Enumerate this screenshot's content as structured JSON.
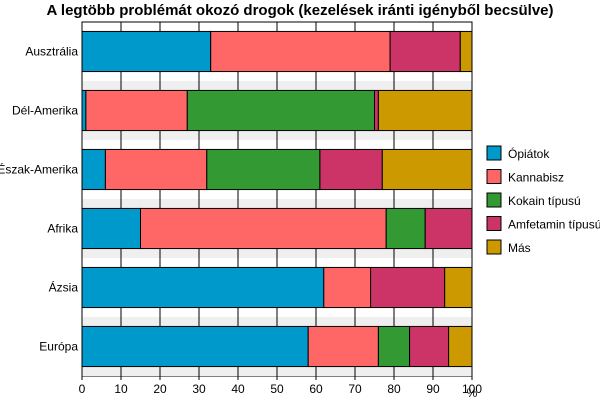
{
  "chart_data": {
    "type": "bar",
    "orientation": "horizontal",
    "stacked": true,
    "title": "A legtöbb problémát okozó drogok (kezelések iránti igényből becsülve)",
    "categories": [
      "Ausztrália",
      "Dél-Amerika",
      "Észak-Amerika",
      "Afrika",
      "Ázsia",
      "Európa"
    ],
    "series": [
      {
        "name": "Ópiátok",
        "color": "#0099cc",
        "values": [
          33,
          1,
          6,
          15,
          62,
          58
        ]
      },
      {
        "name": "Kannabisz",
        "color": "#ff6666",
        "values": [
          46,
          26,
          26,
          63,
          12,
          18
        ]
      },
      {
        "name": "Kokain típusú",
        "color": "#339933",
        "values": [
          0,
          48,
          29,
          10,
          0,
          8
        ]
      },
      {
        "name": "Amfetamin típusú",
        "color": "#cc3366",
        "values": [
          18,
          1,
          16,
          12,
          19,
          10
        ]
      },
      {
        "name": "Más",
        "color": "#cc9900",
        "values": [
          3,
          24,
          23,
          0,
          7,
          6
        ]
      }
    ],
    "xlim": [
      0,
      100
    ],
    "xticks": [
      "0",
      "10",
      "20",
      "30",
      "40",
      "50",
      "60",
      "70",
      "80",
      "90",
      "100"
    ],
    "xunit": "%",
    "grid": "vertical",
    "legend_position": "right"
  }
}
